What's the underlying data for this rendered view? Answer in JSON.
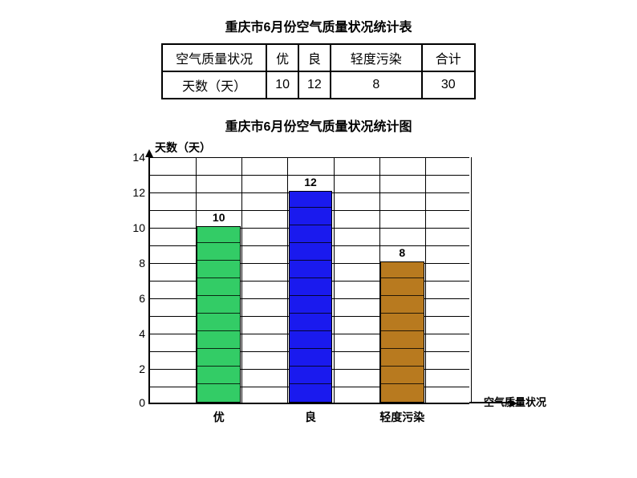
{
  "table": {
    "title": "重庆市6月份空气质量状况统计表",
    "header": [
      "空气质量状况",
      "优",
      "良",
      "轻度污染",
      "合计"
    ],
    "row_label": "天数（天）",
    "values": [
      10,
      12,
      8,
      30
    ]
  },
  "chart": {
    "title": "重庆市6月份空气质量状况统计图",
    "type": "bar",
    "y_axis_label": "天数（天）",
    "x_axis_label": "空气质量状况",
    "ylim": [
      0,
      14
    ],
    "ytick_step": 2,
    "major_ticks": [
      0,
      2,
      4,
      6,
      8,
      10,
      12,
      14
    ],
    "minor_grid_every": 1,
    "grid_x_cols": 7,
    "background_color": "#ffffff",
    "grid_color": "#000000",
    "axis_color": "#000000",
    "bar_width_ratio": 0.75,
    "categories": [
      "优",
      "良",
      "轻度污染"
    ],
    "values": [
      10,
      12,
      8
    ],
    "bar_colors": [
      "#33cc66",
      "#1a1aee",
      "#b87a1f"
    ],
    "value_fontsize": 14,
    "label_fontsize": 14,
    "title_fontsize": 16
  }
}
